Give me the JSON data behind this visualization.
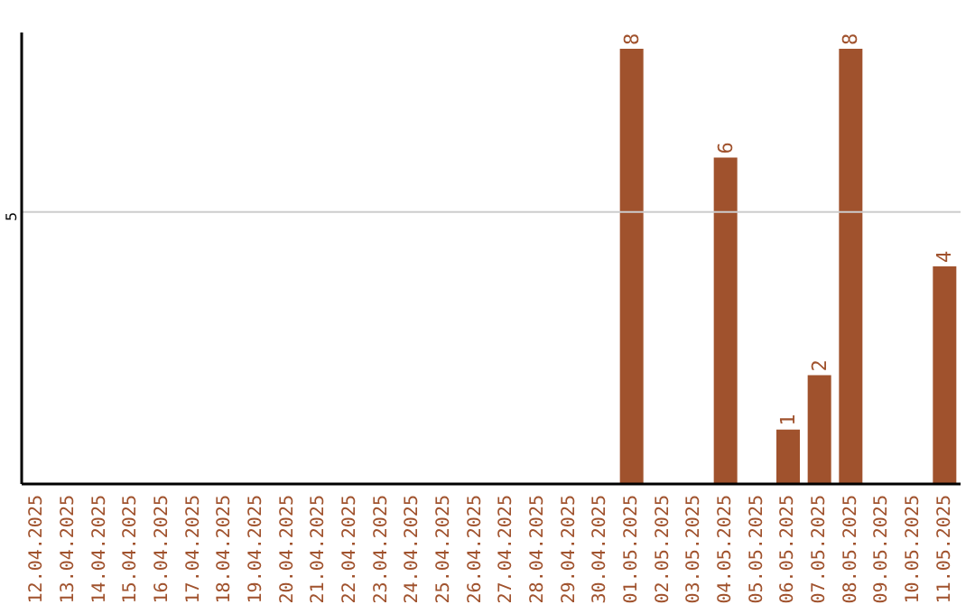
{
  "chart_data": {
    "type": "bar",
    "categories": [
      "12.04.2025",
      "13.04.2025",
      "14.04.2025",
      "15.04.2025",
      "16.04.2025",
      "17.04.2025",
      "18.04.2025",
      "19.04.2025",
      "20.04.2025",
      "21.04.2025",
      "22.04.2025",
      "23.04.2025",
      "24.04.2025",
      "25.04.2025",
      "26.04.2025",
      "27.04.2025",
      "28.04.2025",
      "29.04.2025",
      "30.04.2025",
      "01.05.2025",
      "02.05.2025",
      "03.05.2025",
      "04.05.2025",
      "05.05.2025",
      "06.05.2025",
      "07.05.2025",
      "08.05.2025",
      "09.05.2025",
      "10.05.2025",
      "11.05.2025"
    ],
    "values": [
      null,
      null,
      null,
      null,
      null,
      null,
      null,
      null,
      null,
      null,
      null,
      null,
      null,
      null,
      null,
      null,
      null,
      null,
      null,
      8,
      null,
      null,
      6,
      null,
      1,
      2,
      8,
      null,
      null,
      4
    ],
    "data_labels": true,
    "color": "#a0522d",
    "ylim": [
      0,
      8.3
    ],
    "yticks": [
      5
    ],
    "grid": "y"
  }
}
